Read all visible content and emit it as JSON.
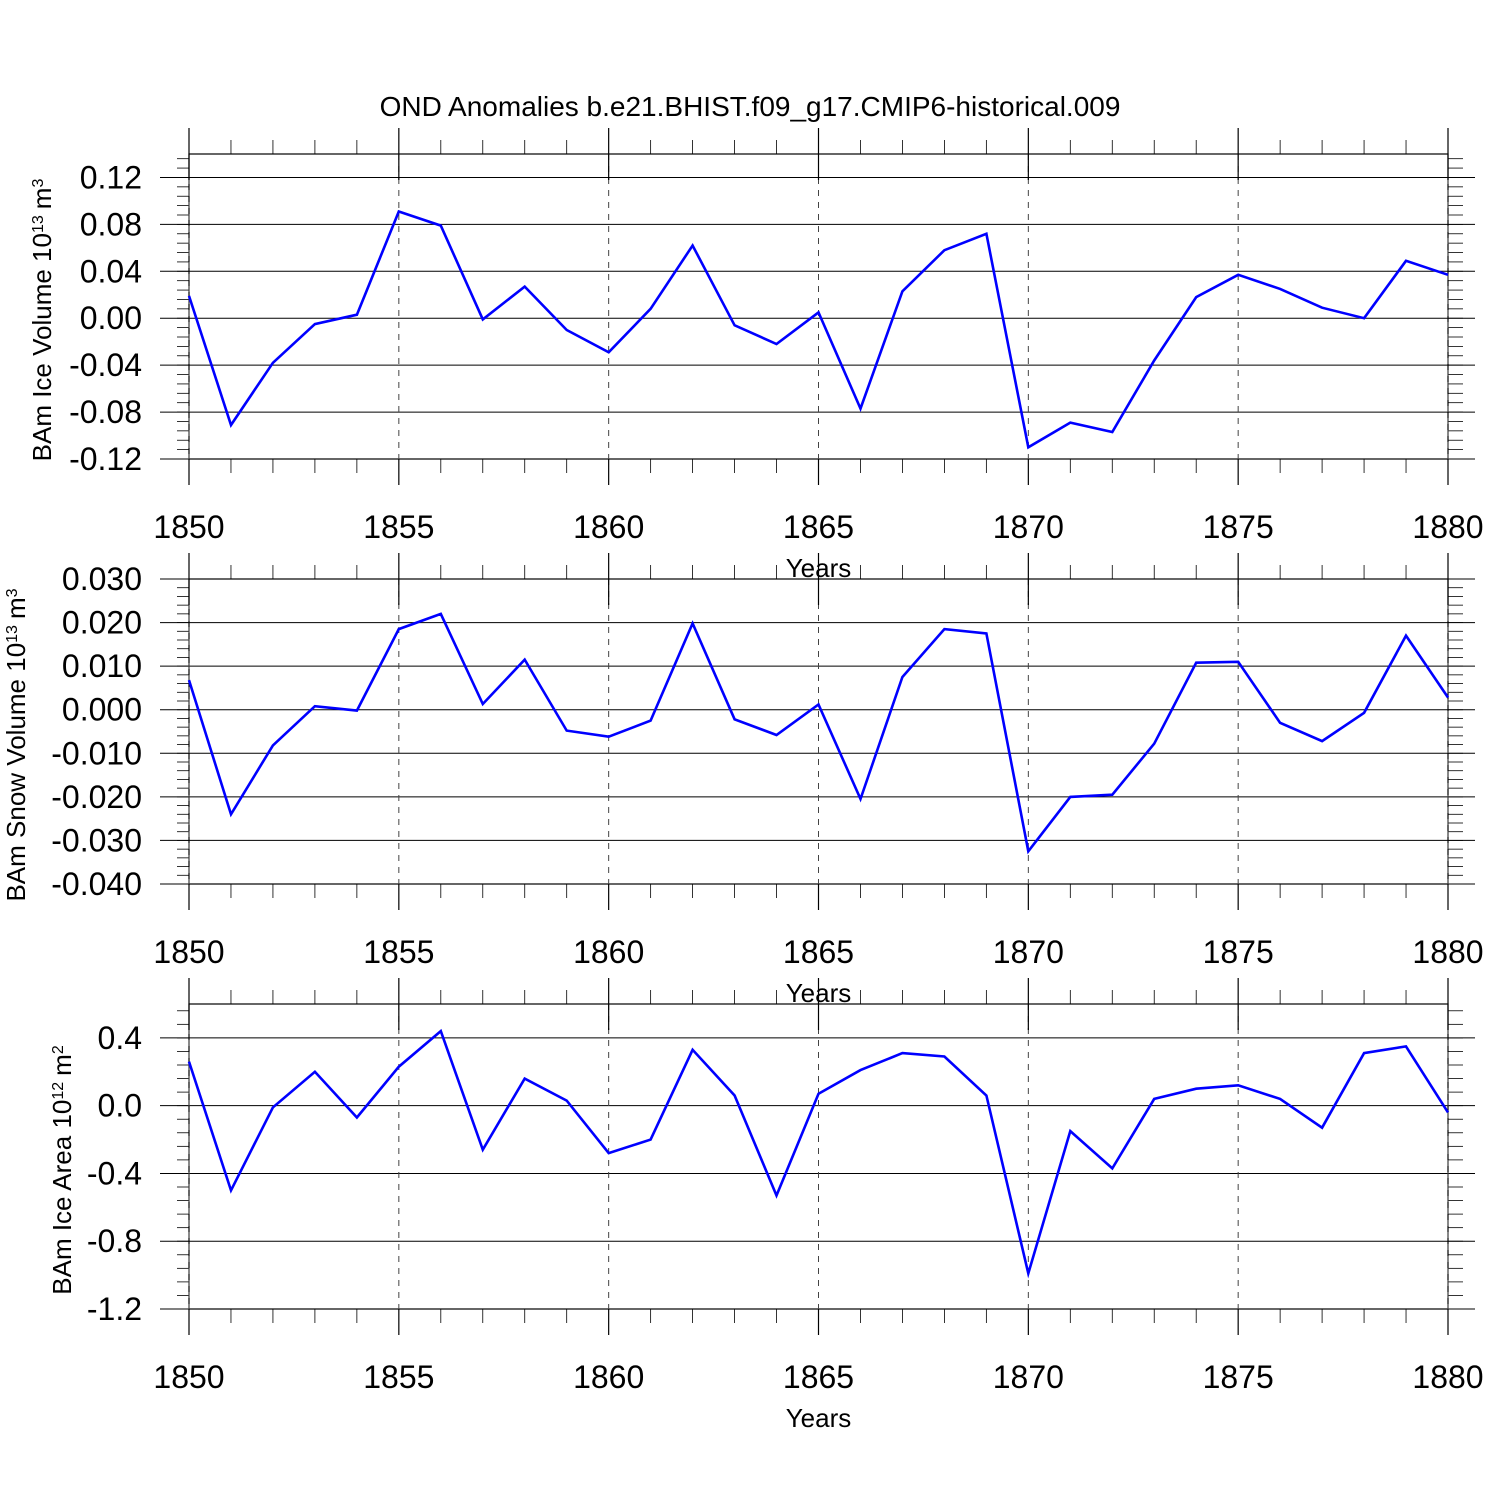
{
  "title": "OND Anomalies b.e21.BHIST.f09_g17.CMIP6-historical.009",
  "line_color": "#0000ff",
  "chart_data": [
    {
      "type": "line",
      "ylabel_main": "BAm Ice Volume 10",
      "ylabel_exp": "13",
      "ylabel_unit": "m",
      "ylabel_unit_exp": "3",
      "xlabel": "Years",
      "xlim": [
        1850,
        1880
      ],
      "ylim": [
        -0.12,
        0.14
      ],
      "yticks": [
        0.12,
        0.08,
        0.04,
        0.0,
        -0.04,
        -0.08,
        -0.12
      ],
      "ytick_labels": [
        "0.12",
        "0.08",
        "0.04",
        "0.00",
        "-0.04",
        "-0.08",
        "-0.12"
      ],
      "yminor_step": 0.008,
      "xticks": [
        1850,
        1855,
        1860,
        1865,
        1870,
        1875,
        1880
      ],
      "xtick_labels": [
        "1850",
        "1855",
        "1860",
        "1865",
        "1870",
        "1875",
        "1880"
      ],
      "x": [
        1850,
        1851,
        1852,
        1853,
        1854,
        1855,
        1856,
        1857,
        1858,
        1859,
        1860,
        1861,
        1862,
        1863,
        1864,
        1865,
        1866,
        1867,
        1868,
        1869,
        1870,
        1871,
        1872,
        1873,
        1874,
        1875,
        1876,
        1877,
        1878,
        1879,
        1880
      ],
      "series": [
        {
          "name": "BAm Ice Volume",
          "values": [
            0.019,
            -0.091,
            -0.038,
            -0.005,
            0.003,
            0.091,
            0.079,
            -0.001,
            0.027,
            -0.01,
            -0.029,
            0.008,
            0.062,
            -0.006,
            -0.022,
            0.005,
            -0.077,
            0.023,
            0.058,
            0.072,
            -0.11,
            -0.089,
            -0.097,
            -0.036,
            0.018,
            0.037,
            0.025,
            0.009,
            0.0,
            0.049,
            0.037
          ]
        }
      ]
    },
    {
      "type": "line",
      "ylabel_main": "BAm Snow Volume 10",
      "ylabel_exp": "13",
      "ylabel_unit": "m",
      "ylabel_unit_exp": "3",
      "xlabel": "Years",
      "xlim": [
        1850,
        1880
      ],
      "ylim": [
        -0.04,
        0.03
      ],
      "yticks": [
        0.03,
        0.02,
        0.01,
        0.0,
        -0.01,
        -0.02,
        -0.03,
        -0.04
      ],
      "ytick_labels": [
        "0.030",
        "0.020",
        "0.010",
        "0.000",
        "-0.010",
        "-0.020",
        "-0.030",
        "-0.040"
      ],
      "yminor_step": 0.002,
      "xticks": [
        1850,
        1855,
        1860,
        1865,
        1870,
        1875,
        1880
      ],
      "xtick_labels": [
        "1850",
        "1855",
        "1860",
        "1865",
        "1870",
        "1875",
        "1880"
      ],
      "x": [
        1850,
        1851,
        1852,
        1853,
        1854,
        1855,
        1856,
        1857,
        1858,
        1859,
        1860,
        1861,
        1862,
        1863,
        1864,
        1865,
        1866,
        1867,
        1868,
        1869,
        1870,
        1871,
        1872,
        1873,
        1874,
        1875,
        1876,
        1877,
        1878,
        1879,
        1880
      ],
      "series": [
        {
          "name": "BAm Snow Volume",
          "values": [
            0.0068,
            -0.024,
            -0.0082,
            0.0008,
            -0.0002,
            0.0185,
            0.022,
            0.0013,
            0.0115,
            -0.0048,
            -0.0062,
            -0.0025,
            0.0198,
            -0.0022,
            -0.0058,
            0.0012,
            -0.0205,
            0.0075,
            0.0185,
            0.0175,
            -0.0325,
            -0.02,
            -0.0195,
            -0.0078,
            0.0108,
            0.011,
            -0.003,
            -0.0072,
            -0.0007,
            0.017,
            0.0028
          ]
        }
      ]
    },
    {
      "type": "line",
      "ylabel_main": "BAm Ice Area 10",
      "ylabel_exp": "12",
      "ylabel_unit": "m",
      "ylabel_unit_exp": "2",
      "xlabel": "Years",
      "xlim": [
        1850,
        1880
      ],
      "ylim": [
        -1.2,
        0.6
      ],
      "yticks": [
        0.4,
        0.0,
        -0.4,
        -0.8,
        -1.2
      ],
      "ytick_labels": [
        "0.4",
        "0.0",
        "-0.4",
        "-0.8",
        "-1.2"
      ],
      "yminor_step": 0.08,
      "xticks": [
        1850,
        1855,
        1860,
        1865,
        1870,
        1875,
        1880
      ],
      "xtick_labels": [
        "1850",
        "1855",
        "1860",
        "1865",
        "1870",
        "1875",
        "1880"
      ],
      "x": [
        1850,
        1851,
        1852,
        1853,
        1854,
        1855,
        1856,
        1857,
        1858,
        1859,
        1860,
        1861,
        1862,
        1863,
        1864,
        1865,
        1866,
        1867,
        1868,
        1869,
        1870,
        1871,
        1872,
        1873,
        1874,
        1875,
        1876,
        1877,
        1878,
        1879,
        1880
      ],
      "series": [
        {
          "name": "BAm Ice Area",
          "values": [
            0.26,
            -0.5,
            -0.01,
            0.2,
            -0.07,
            0.23,
            0.44,
            -0.26,
            0.16,
            0.03,
            -0.28,
            -0.2,
            0.33,
            0.06,
            -0.53,
            0.07,
            0.21,
            0.31,
            0.29,
            0.06,
            -0.99,
            -0.15,
            -0.37,
            0.04,
            0.1,
            0.12,
            0.04,
            -0.13,
            0.31,
            0.35,
            -0.04
          ]
        }
      ]
    }
  ]
}
